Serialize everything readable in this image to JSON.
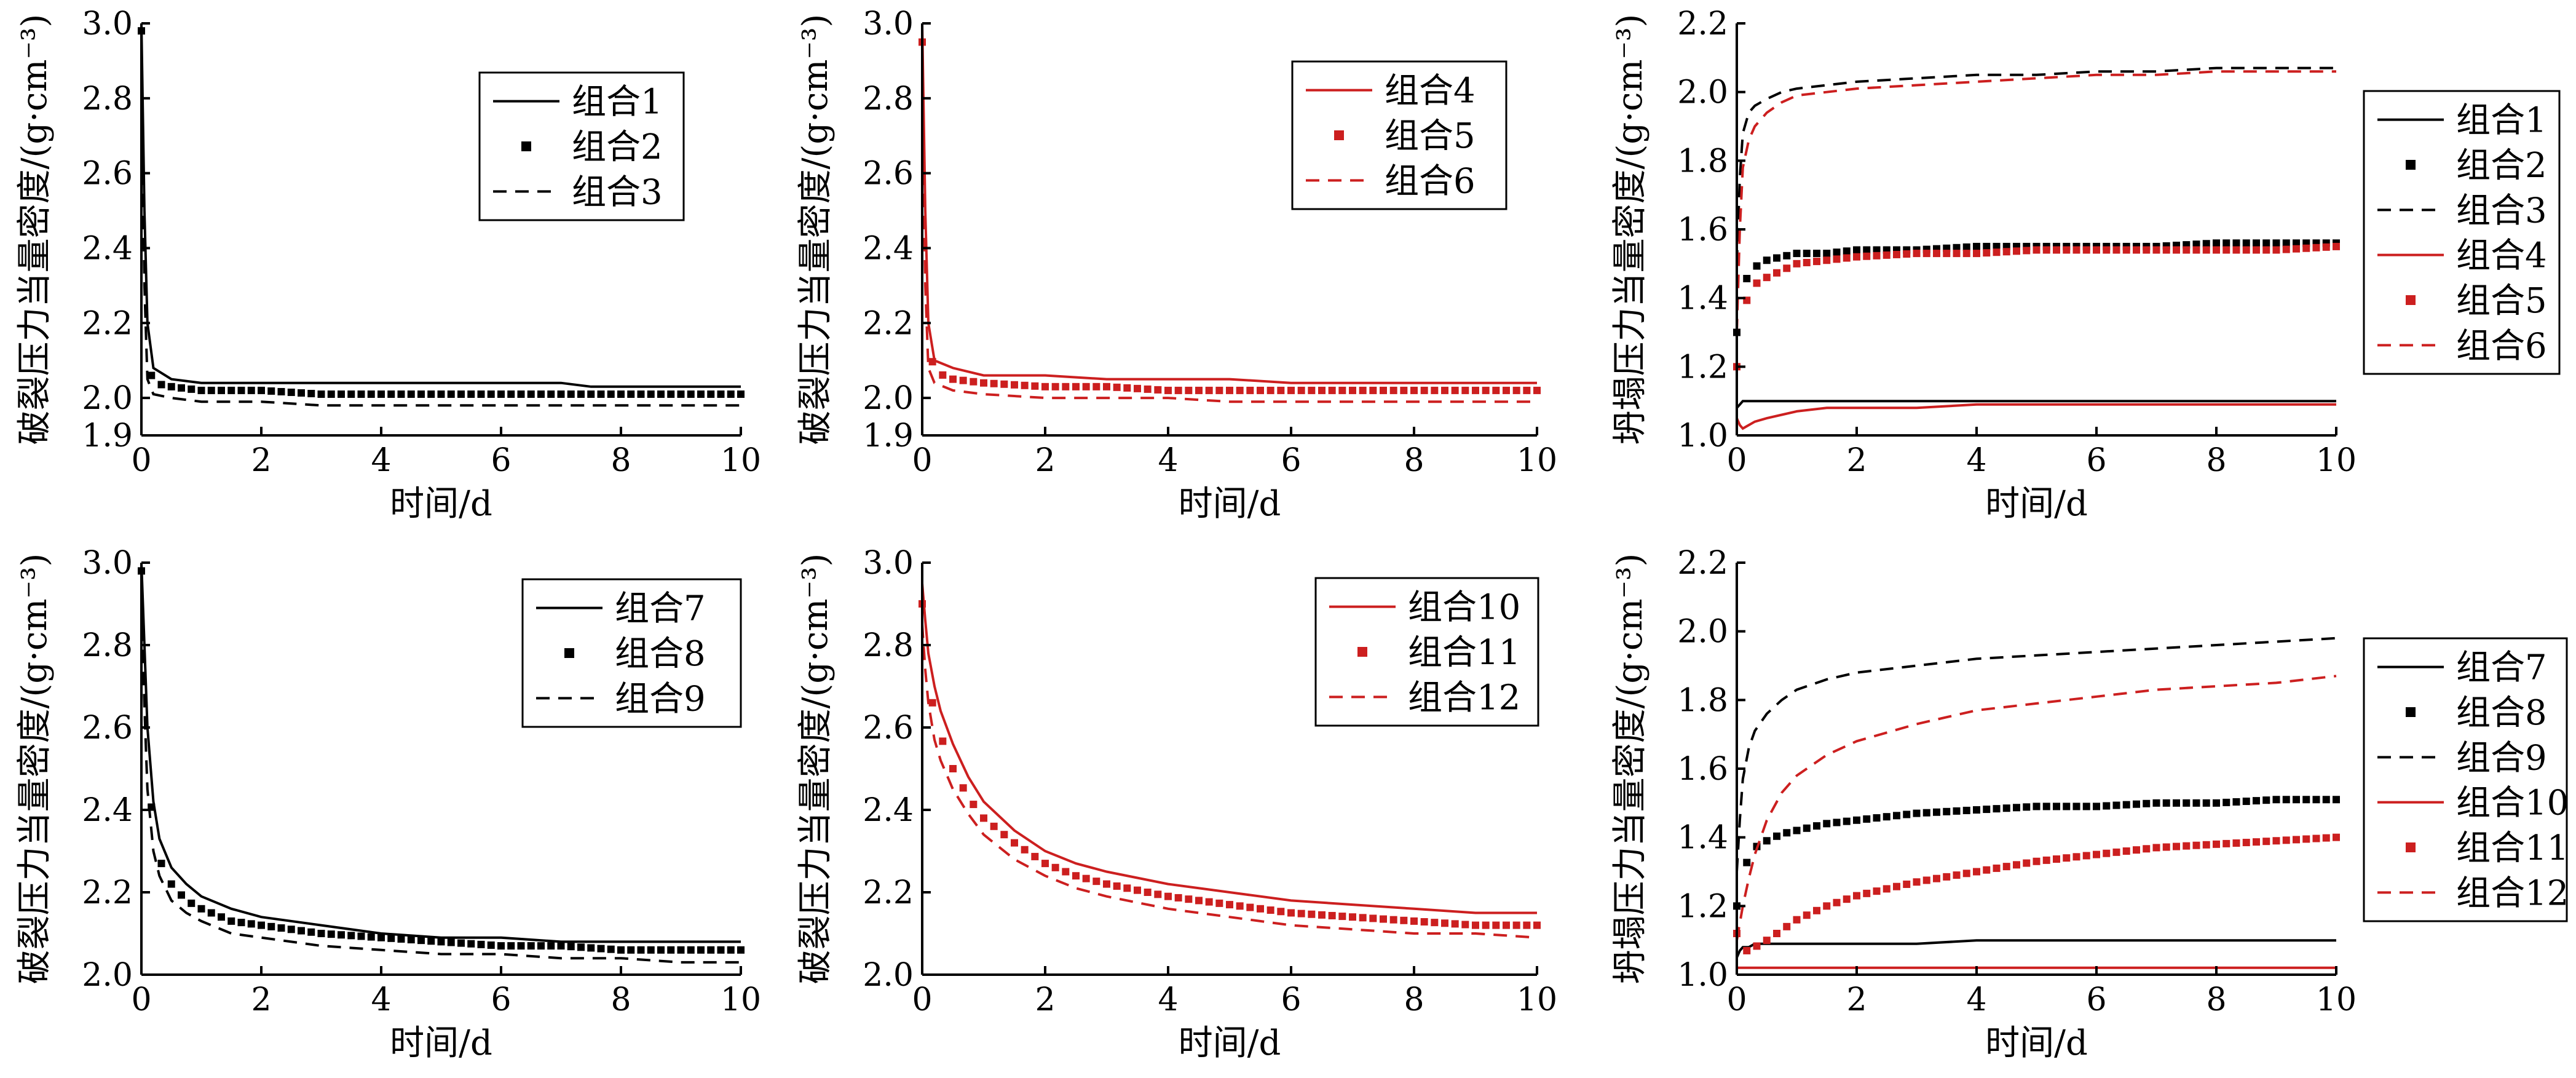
{
  "colors": {
    "black": "#000000",
    "red": "#cc1f1f"
  },
  "chart_data": [
    {
      "type": "line",
      "xlabel": "时间/d",
      "ylabel": "破裂压力当量密度/(g·cm⁻³)",
      "xlim": [
        0,
        10
      ],
      "ylim": [
        1.9,
        3.0
      ],
      "xticks": [
        0,
        2,
        4,
        6,
        8,
        10
      ],
      "yticks": [
        1.9,
        2.0,
        2.2,
        2.4,
        2.6,
        2.8,
        3.0
      ],
      "legend_position": "top-right",
      "x": [
        0,
        0.05,
        0.1,
        0.2,
        0.5,
        1,
        2,
        3,
        4,
        5,
        6,
        7,
        7.5,
        8,
        9,
        10
      ],
      "series": [
        {
          "name": "组合1",
          "color": "black",
          "style": "solid",
          "values": [
            3.0,
            2.5,
            2.2,
            2.08,
            2.05,
            2.04,
            2.04,
            2.04,
            2.04,
            2.04,
            2.04,
            2.04,
            2.03,
            2.03,
            2.03,
            2.03
          ]
        },
        {
          "name": "组合2",
          "color": "black",
          "style": "square",
          "values": [
            2.98,
            2.4,
            2.1,
            2.04,
            2.03,
            2.02,
            2.02,
            2.01,
            2.01,
            2.01,
            2.01,
            2.01,
            2.01,
            2.01,
            2.01,
            2.01
          ]
        },
        {
          "name": "组合3",
          "color": "black",
          "style": "dashed",
          "values": [
            2.9,
            2.3,
            2.05,
            2.01,
            2.0,
            1.99,
            1.99,
            1.98,
            1.98,
            1.98,
            1.98,
            1.98,
            1.98,
            1.98,
            1.98,
            1.98
          ]
        }
      ]
    },
    {
      "type": "line",
      "xlabel": "时间/d",
      "ylabel": "破裂压力当量密度/(g·cm⁻³)",
      "xlim": [
        0,
        10
      ],
      "ylim": [
        1.9,
        3.0
      ],
      "xticks": [
        0,
        2,
        4,
        6,
        8,
        10
      ],
      "yticks": [
        1.9,
        2.0,
        2.2,
        2.4,
        2.6,
        2.8,
        3.0
      ],
      "legend_position": "top-right",
      "x": [
        0,
        0.05,
        0.1,
        0.2,
        0.5,
        1,
        2,
        3,
        4,
        5,
        6,
        7,
        8,
        9,
        10
      ],
      "series": [
        {
          "name": "组合4",
          "color": "red",
          "style": "solid",
          "values": [
            3.0,
            2.5,
            2.2,
            2.1,
            2.08,
            2.06,
            2.06,
            2.05,
            2.05,
            2.05,
            2.04,
            2.04,
            2.04,
            2.04,
            2.04
          ]
        },
        {
          "name": "组合5",
          "color": "red",
          "style": "square",
          "values": [
            2.95,
            2.4,
            2.15,
            2.07,
            2.05,
            2.04,
            2.03,
            2.03,
            2.02,
            2.02,
            2.02,
            2.02,
            2.02,
            2.02,
            2.02
          ]
        },
        {
          "name": "组合6",
          "color": "red",
          "style": "dashed",
          "values": [
            2.9,
            2.3,
            2.08,
            2.04,
            2.02,
            2.01,
            2.0,
            2.0,
            2.0,
            1.99,
            1.99,
            1.99,
            1.99,
            1.99,
            1.99
          ]
        }
      ]
    },
    {
      "type": "line",
      "xlabel": "时间/d",
      "ylabel": "坍塌压力当量密度/(g·cm⁻³)",
      "xlim": [
        0,
        10
      ],
      "ylim": [
        1.0,
        2.2
      ],
      "xticks": [
        0,
        2,
        4,
        6,
        8,
        10
      ],
      "yticks": [
        1.0,
        1.2,
        1.4,
        1.6,
        1.8,
        2.0,
        2.2
      ],
      "legend_position": "right-outside",
      "x": [
        0,
        0.05,
        0.1,
        0.2,
        0.3,
        0.5,
        0.75,
        1,
        1.5,
        2,
        3,
        4,
        5,
        6,
        7,
        8,
        9,
        10
      ],
      "series": [
        {
          "name": "组合1",
          "color": "black",
          "style": "solid",
          "values": [
            1.08,
            1.09,
            1.1,
            1.1,
            1.1,
            1.1,
            1.1,
            1.1,
            1.1,
            1.1,
            1.1,
            1.1,
            1.1,
            1.1,
            1.1,
            1.1,
            1.1,
            1.1
          ]
        },
        {
          "name": "组合2",
          "color": "black",
          "style": "square",
          "values": [
            1.3,
            1.38,
            1.43,
            1.47,
            1.49,
            1.51,
            1.52,
            1.53,
            1.53,
            1.54,
            1.54,
            1.55,
            1.55,
            1.55,
            1.55,
            1.56,
            1.56,
            1.56
          ]
        },
        {
          "name": "组合3",
          "color": "black",
          "style": "dashed",
          "values": [
            1.5,
            1.75,
            1.88,
            1.94,
            1.96,
            1.98,
            2.0,
            2.01,
            2.02,
            2.03,
            2.04,
            2.05,
            2.05,
            2.06,
            2.06,
            2.07,
            2.07,
            2.07
          ]
        },
        {
          "name": "组合4",
          "color": "red",
          "style": "solid",
          "values": [
            1.05,
            1.03,
            1.02,
            1.03,
            1.04,
            1.05,
            1.06,
            1.07,
            1.08,
            1.08,
            1.08,
            1.09,
            1.09,
            1.09,
            1.09,
            1.09,
            1.09,
            1.09
          ]
        },
        {
          "name": "组合5",
          "color": "red",
          "style": "square",
          "values": [
            1.2,
            1.3,
            1.36,
            1.41,
            1.44,
            1.46,
            1.48,
            1.5,
            1.51,
            1.52,
            1.53,
            1.53,
            1.54,
            1.54,
            1.54,
            1.54,
            1.54,
            1.55
          ]
        },
        {
          "name": "组合6",
          "color": "red",
          "style": "dashed",
          "values": [
            1.3,
            1.6,
            1.78,
            1.86,
            1.9,
            1.94,
            1.97,
            1.99,
            2.0,
            2.01,
            2.02,
            2.03,
            2.04,
            2.05,
            2.05,
            2.06,
            2.06,
            2.06
          ]
        }
      ]
    },
    {
      "type": "line",
      "xlabel": "时间/d",
      "ylabel": "破裂压力当量密度/(g·cm⁻³)",
      "xlim": [
        0,
        10
      ],
      "ylim": [
        2.0,
        3.0
      ],
      "xticks": [
        0,
        2,
        4,
        6,
        8,
        10
      ],
      "yticks": [
        2.0,
        2.2,
        2.4,
        2.6,
        2.8,
        3.0
      ],
      "legend_position": "top-right",
      "x": [
        0,
        0.05,
        0.1,
        0.2,
        0.3,
        0.5,
        0.75,
        1,
        1.5,
        2,
        3,
        4,
        5,
        6,
        7,
        8,
        9,
        10
      ],
      "series": [
        {
          "name": "组合7",
          "color": "black",
          "style": "solid",
          "values": [
            3.0,
            2.8,
            2.6,
            2.42,
            2.33,
            2.26,
            2.22,
            2.19,
            2.16,
            2.14,
            2.12,
            2.1,
            2.09,
            2.09,
            2.08,
            2.08,
            2.08,
            2.08
          ]
        },
        {
          "name": "组合8",
          "color": "black",
          "style": "square",
          "values": [
            2.98,
            2.72,
            2.52,
            2.35,
            2.28,
            2.22,
            2.18,
            2.16,
            2.13,
            2.12,
            2.1,
            2.09,
            2.08,
            2.07,
            2.07,
            2.06,
            2.06,
            2.06
          ]
        },
        {
          "name": "组合9",
          "color": "black",
          "style": "dashed",
          "values": [
            2.95,
            2.65,
            2.45,
            2.3,
            2.24,
            2.18,
            2.15,
            2.13,
            2.1,
            2.09,
            2.07,
            2.06,
            2.05,
            2.05,
            2.04,
            2.04,
            2.03,
            2.03
          ]
        }
      ]
    },
    {
      "type": "line",
      "xlabel": "时间/d",
      "ylabel": "破裂压力当量密度/(g·cm⁻³)",
      "xlim": [
        0,
        10
      ],
      "ylim": [
        2.0,
        3.0
      ],
      "xticks": [
        0,
        2,
        4,
        6,
        8,
        10
      ],
      "yticks": [
        2.0,
        2.2,
        2.4,
        2.6,
        2.8,
        3.0
      ],
      "legend_position": "top-right",
      "x": [
        0,
        0.05,
        0.1,
        0.2,
        0.3,
        0.5,
        0.75,
        1,
        1.5,
        2,
        2.5,
        3,
        4,
        5,
        6,
        7,
        8,
        9,
        10
      ],
      "series": [
        {
          "name": "组合10",
          "color": "red",
          "style": "solid",
          "values": [
            2.95,
            2.86,
            2.78,
            2.7,
            2.64,
            2.56,
            2.48,
            2.42,
            2.35,
            2.3,
            2.27,
            2.25,
            2.22,
            2.2,
            2.18,
            2.17,
            2.16,
            2.15,
            2.15
          ]
        },
        {
          "name": "组合11",
          "color": "red",
          "style": "square",
          "values": [
            2.9,
            2.8,
            2.72,
            2.63,
            2.58,
            2.5,
            2.43,
            2.38,
            2.32,
            2.27,
            2.24,
            2.22,
            2.19,
            2.17,
            2.15,
            2.14,
            2.13,
            2.12,
            2.12
          ]
        },
        {
          "name": "组合12",
          "color": "red",
          "style": "dashed",
          "values": [
            2.85,
            2.74,
            2.66,
            2.57,
            2.52,
            2.45,
            2.39,
            2.34,
            2.28,
            2.24,
            2.21,
            2.19,
            2.16,
            2.14,
            2.12,
            2.11,
            2.1,
            2.1,
            2.09
          ]
        }
      ]
    },
    {
      "type": "line",
      "xlabel": "时间/d",
      "ylabel": "坍塌压力当量密度/(g·cm⁻³)",
      "xlim": [
        0,
        10
      ],
      "ylim": [
        1.0,
        2.2
      ],
      "xticks": [
        0,
        2,
        4,
        6,
        8,
        10
      ],
      "yticks": [
        1.0,
        1.2,
        1.4,
        1.6,
        1.8,
        2.0,
        2.2
      ],
      "legend_position": "right-outside",
      "x": [
        0,
        0.05,
        0.1,
        0.2,
        0.3,
        0.5,
        0.75,
        1,
        1.5,
        2,
        3,
        4,
        5,
        6,
        7,
        8,
        9,
        10
      ],
      "series": [
        {
          "name": "组合7",
          "color": "black",
          "style": "solid",
          "values": [
            1.05,
            1.07,
            1.08,
            1.08,
            1.09,
            1.09,
            1.09,
            1.09,
            1.09,
            1.09,
            1.09,
            1.1,
            1.1,
            1.1,
            1.1,
            1.1,
            1.1,
            1.1
          ]
        },
        {
          "name": "组合8",
          "color": "black",
          "style": "square",
          "values": [
            1.2,
            1.26,
            1.3,
            1.34,
            1.37,
            1.39,
            1.41,
            1.42,
            1.44,
            1.45,
            1.47,
            1.48,
            1.49,
            1.49,
            1.5,
            1.5,
            1.51,
            1.51
          ]
        },
        {
          "name": "组合9",
          "color": "black",
          "style": "dashed",
          "values": [
            1.3,
            1.45,
            1.57,
            1.66,
            1.71,
            1.76,
            1.8,
            1.83,
            1.86,
            1.88,
            1.9,
            1.92,
            1.93,
            1.94,
            1.95,
            1.96,
            1.97,
            1.98
          ]
        },
        {
          "name": "组合10",
          "color": "red",
          "style": "solid",
          "values": [
            1.02,
            1.02,
            1.02,
            1.02,
            1.02,
            1.02,
            1.02,
            1.02,
            1.02,
            1.02,
            1.02,
            1.02,
            1.02,
            1.02,
            1.02,
            1.02,
            1.02,
            1.02
          ]
        },
        {
          "name": "组合11",
          "color": "red",
          "style": "square",
          "values": [
            1.12,
            1.08,
            1.07,
            1.07,
            1.08,
            1.1,
            1.13,
            1.16,
            1.2,
            1.23,
            1.27,
            1.3,
            1.33,
            1.35,
            1.37,
            1.38,
            1.39,
            1.4
          ]
        },
        {
          "name": "组合12",
          "color": "red",
          "style": "dashed",
          "values": [
            1.1,
            1.15,
            1.2,
            1.28,
            1.35,
            1.45,
            1.53,
            1.58,
            1.64,
            1.68,
            1.73,
            1.77,
            1.79,
            1.81,
            1.83,
            1.84,
            1.85,
            1.87
          ]
        }
      ]
    }
  ]
}
